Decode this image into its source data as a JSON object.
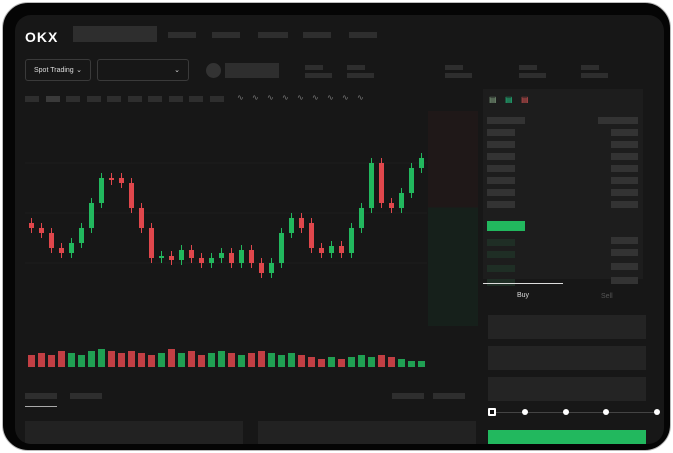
{
  "header": {
    "logo": "OKX"
  },
  "toolbar": {
    "market_select": "Spot Trading",
    "pair_select": "",
    "chevron": "chevron-down-icon"
  },
  "orderbook": {
    "icons": [
      "orderbook-both-icon",
      "orderbook-buy-icon",
      "orderbook-sell-icon"
    ]
  },
  "trade": {
    "tabs": [
      {
        "label": "Buy",
        "active": true
      },
      {
        "label": "Sell",
        "active": false
      }
    ],
    "slider_level": 0
  },
  "colors": {
    "up": "#22b85e",
    "down": "#e0474c",
    "background": "#171717",
    "accent": "#22b85e"
  },
  "candles": [
    {
      "o": 95,
      "c": 90
    },
    {
      "o": 90,
      "c": 85
    },
    {
      "o": 85,
      "c": 70
    },
    {
      "o": 70,
      "c": 65
    },
    {
      "o": 65,
      "c": 75
    },
    {
      "o": 75,
      "c": 90
    },
    {
      "o": 90,
      "c": 115
    },
    {
      "o": 115,
      "c": 140
    },
    {
      "o": 140,
      "c": 138
    },
    {
      "o": 140,
      "c": 135
    },
    {
      "o": 135,
      "c": 110
    },
    {
      "o": 110,
      "c": 90
    },
    {
      "o": 90,
      "c": 60
    },
    {
      "o": 60,
      "c": 62
    },
    {
      "o": 62,
      "c": 58
    },
    {
      "o": 58,
      "c": 68
    },
    {
      "o": 68,
      "c": 60
    },
    {
      "o": 60,
      "c": 55
    },
    {
      "o": 55,
      "c": 60
    },
    {
      "o": 60,
      "c": 65
    },
    {
      "o": 65,
      "c": 55
    },
    {
      "o": 55,
      "c": 68
    },
    {
      "o": 68,
      "c": 55
    },
    {
      "o": 55,
      "c": 45
    },
    {
      "o": 45,
      "c": 55
    },
    {
      "o": 55,
      "c": 85
    },
    {
      "o": 85,
      "c": 100
    },
    {
      "o": 100,
      "c": 90
    },
    {
      "o": 95,
      "c": 70
    },
    {
      "o": 70,
      "c": 65
    },
    {
      "o": 65,
      "c": 72
    },
    {
      "o": 72,
      "c": 65
    },
    {
      "o": 65,
      "c": 90
    },
    {
      "o": 90,
      "c": 110
    },
    {
      "o": 110,
      "c": 155
    },
    {
      "o": 155,
      "c": 115
    },
    {
      "o": 115,
      "c": 110
    },
    {
      "o": 110,
      "c": 125
    },
    {
      "o": 125,
      "c": 150
    },
    {
      "o": 150,
      "c": 160
    }
  ],
  "volumes": [
    6,
    7,
    6,
    8,
    7,
    6,
    8,
    9,
    8,
    7,
    8,
    7,
    6,
    7,
    9,
    7,
    8,
    6,
    7,
    8,
    7,
    6,
    7,
    8,
    7,
    6,
    7,
    6,
    5,
    4,
    5,
    4,
    5,
    6,
    5,
    6,
    5,
    4,
    3,
    3
  ]
}
